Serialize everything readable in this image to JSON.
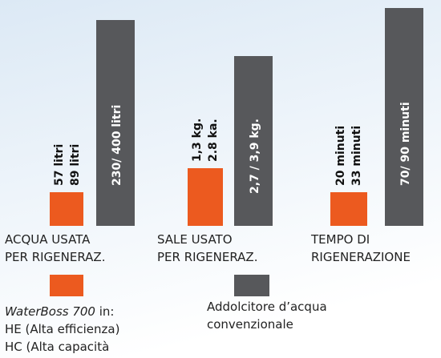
{
  "groups": [
    {
      "orange_labels": [
        "57 litri",
        "89 litri"
      ],
      "grey_label": "230/ 400 litri",
      "category": [
        "ACQUA USATA",
        "PER RIGENERAZ."
      ]
    },
    {
      "orange_labels": [
        "1,3 kg.",
        "2.8 ka."
      ],
      "grey_label": "2,7 / 3,9 kg.",
      "category": [
        "SALE USATO",
        "PER RIGENERAZ."
      ]
    },
    {
      "orange_labels": [
        "20 minuti",
        "33 minuti"
      ],
      "grey_label": "70/ 90 minuti",
      "category": [
        "TEMPO DI",
        "RIGENERAZIONE"
      ]
    }
  ],
  "legend": {
    "orange": {
      "brand": "WaterBoss 700",
      "brand_suffix": " in:",
      "lines": [
        "HE (Alta efficienza)",
        "HC (Alta capacità"
      ]
    },
    "grey": {
      "lines": [
        "Addolcitore d’acqua",
        "convenzionale"
      ]
    }
  }
}
